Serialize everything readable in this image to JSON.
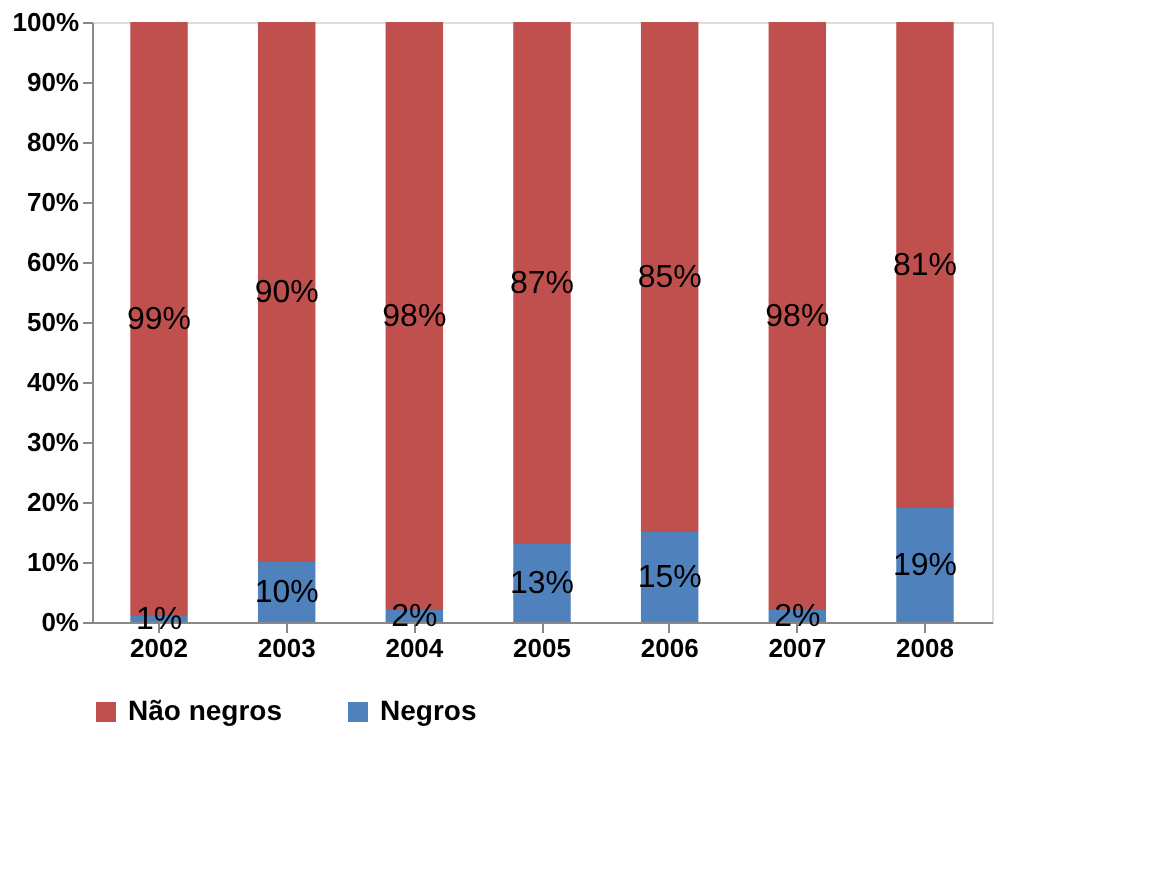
{
  "chart_data": {
    "type": "bar",
    "stacked": true,
    "categories": [
      "2002",
      "2003",
      "2004",
      "2005",
      "2006",
      "2007",
      "2008"
    ],
    "series": [
      {
        "name": "Negros",
        "color": "#4f81bd",
        "values": [
          1,
          10,
          2,
          13,
          15,
          2,
          19
        ],
        "value_labels": [
          "1%",
          "10%",
          "2%",
          "13%",
          "15%",
          "2%",
          "19%"
        ]
      },
      {
        "name": "Não negros",
        "color": "#c0504d",
        "values": [
          99,
          90,
          98,
          87,
          85,
          98,
          81
        ],
        "value_labels": [
          "99%",
          "90%",
          "98%",
          "87%",
          "85%",
          "98%",
          "81%"
        ]
      }
    ],
    "ylim": [
      0,
      100
    ],
    "yticks": [
      {
        "value": 0,
        "label": "0%"
      },
      {
        "value": 10,
        "label": "10%"
      },
      {
        "value": 20,
        "label": "20%"
      },
      {
        "value": 30,
        "label": "30%"
      },
      {
        "value": 40,
        "label": "40%"
      },
      {
        "value": 50,
        "label": "50%"
      },
      {
        "value": 60,
        "label": "60%"
      },
      {
        "value": 70,
        "label": "70%"
      },
      {
        "value": 80,
        "label": "80%"
      },
      {
        "value": 90,
        "label": "90%"
      },
      {
        "value": 100,
        "label": "100%"
      }
    ],
    "grid": false,
    "legend": "bottom"
  }
}
